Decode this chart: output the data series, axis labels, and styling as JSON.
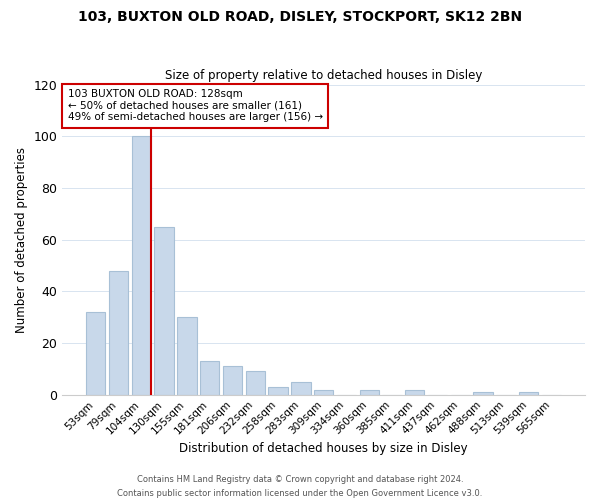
{
  "title": "103, BUXTON OLD ROAD, DISLEY, STOCKPORT, SK12 2BN",
  "subtitle": "Size of property relative to detached houses in Disley",
  "xlabel": "Distribution of detached houses by size in Disley",
  "ylabel": "Number of detached properties",
  "bin_labels": [
    "53sqm",
    "79sqm",
    "104sqm",
    "130sqm",
    "155sqm",
    "181sqm",
    "206sqm",
    "232sqm",
    "258sqm",
    "283sqm",
    "309sqm",
    "334sqm",
    "360sqm",
    "385sqm",
    "411sqm",
    "437sqm",
    "462sqm",
    "488sqm",
    "513sqm",
    "539sqm",
    "565sqm"
  ],
  "bar_heights": [
    32,
    48,
    100,
    65,
    30,
    13,
    11,
    9,
    3,
    5,
    2,
    0,
    2,
    0,
    2,
    0,
    0,
    1,
    0,
    1,
    0
  ],
  "bar_color": "#c8d8ea",
  "bar_edge_color": "#a8c0d6",
  "vline_color": "#cc0000",
  "ylim": [
    0,
    120
  ],
  "yticks": [
    0,
    20,
    40,
    60,
    80,
    100,
    120
  ],
  "annotation_text": "103 BUXTON OLD ROAD: 128sqm\n← 50% of detached houses are smaller (161)\n49% of semi-detached houses are larger (156) →",
  "annotation_box_edge": "#cc0000",
  "footer_line1": "Contains HM Land Registry data © Crown copyright and database right 2024.",
  "footer_line2": "Contains public sector information licensed under the Open Government Licence v3.0.",
  "background_color": "#ffffff",
  "grid_color": "#d8e4f0"
}
